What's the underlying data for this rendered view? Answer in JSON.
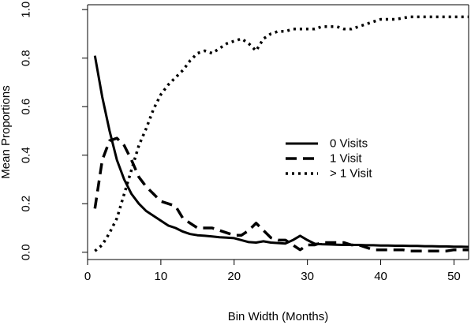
{
  "chart_data": {
    "type": "line",
    "title": "",
    "xlabel": "Bin Width (Months)",
    "ylabel": "Mean Proportions",
    "xlim": [
      0,
      52
    ],
    "ylim": [
      -0.03,
      1.02
    ],
    "x_ticks": [
      0,
      10,
      20,
      30,
      40,
      50
    ],
    "x_tick_labels": [
      "0",
      "10",
      "20",
      "30",
      "40",
      "50"
    ],
    "y_ticks": [
      0.0,
      0.2,
      0.4,
      0.6,
      0.8,
      1.0
    ],
    "y_tick_labels": [
      "0.0",
      "0.2",
      "0.4",
      "0.6",
      "0.8",
      "1.0"
    ],
    "grid": false,
    "legend_position": "center-right",
    "series": [
      {
        "name": "0 Visits",
        "line_style": "solid",
        "color": "#000000",
        "x": [
          1,
          2,
          3,
          4,
          5,
          6,
          7,
          8,
          9,
          10,
          11,
          12,
          13,
          14,
          15,
          16,
          17,
          18,
          19,
          20,
          21,
          22,
          23,
          24,
          25,
          26,
          27,
          28,
          29,
          30,
          31,
          32,
          33,
          34,
          35,
          36,
          37,
          38,
          39,
          40,
          41,
          42,
          43,
          44,
          45,
          46,
          47,
          48,
          49,
          50,
          51,
          52
        ],
        "y": [
          0.81,
          0.64,
          0.5,
          0.38,
          0.3,
          0.24,
          0.2,
          0.17,
          0.15,
          0.13,
          0.11,
          0.1,
          0.085,
          0.075,
          0.07,
          0.068,
          0.065,
          0.062,
          0.06,
          0.058,
          0.05,
          0.042,
          0.04,
          0.045,
          0.04,
          0.038,
          0.036,
          0.05,
          0.068,
          0.05,
          0.035,
          0.033,
          0.032,
          0.031,
          0.03,
          0.03,
          0.03,
          0.029,
          0.029,
          0.028,
          0.028,
          0.027,
          0.027,
          0.026,
          0.026,
          0.025,
          0.025,
          0.024,
          0.024,
          0.023,
          0.023,
          0.022
        ]
      },
      {
        "name": "1 Visit",
        "line_style": "dashed",
        "color": "#000000",
        "x": [
          1,
          2,
          3,
          4,
          5,
          6,
          7,
          8,
          9,
          10,
          11,
          12,
          13,
          14,
          15,
          16,
          17,
          18,
          19,
          20,
          21,
          22,
          23,
          24,
          25,
          26,
          27,
          28,
          29,
          30,
          31,
          32,
          33,
          34,
          35,
          36,
          37,
          38,
          39,
          40,
          41,
          42,
          43,
          44,
          45,
          46,
          47,
          48,
          49,
          50,
          51,
          52
        ],
        "y": [
          0.18,
          0.38,
          0.46,
          0.47,
          0.44,
          0.38,
          0.31,
          0.27,
          0.24,
          0.21,
          0.2,
          0.19,
          0.14,
          0.12,
          0.1,
          0.1,
          0.1,
          0.09,
          0.08,
          0.07,
          0.07,
          0.09,
          0.12,
          0.09,
          0.06,
          0.05,
          0.05,
          0.03,
          0.01,
          0.03,
          0.03,
          0.04,
          0.04,
          0.04,
          0.04,
          0.03,
          0.03,
          0.02,
          0.01,
          0.01,
          0.01,
          0.01,
          0.01,
          0.005,
          0.005,
          0.005,
          0.005,
          0.005,
          0.005,
          0.01,
          0.01,
          0.01
        ]
      },
      {
        "name": "> 1 Visit",
        "line_style": "dotted",
        "color": "#000000",
        "x": [
          1,
          2,
          3,
          4,
          5,
          6,
          7,
          8,
          9,
          10,
          11,
          12,
          13,
          14,
          15,
          16,
          17,
          18,
          19,
          20,
          21,
          22,
          23,
          24,
          25,
          26,
          27,
          28,
          29,
          30,
          31,
          32,
          33,
          34,
          35,
          36,
          37,
          38,
          39,
          40,
          41,
          42,
          43,
          44,
          45,
          46,
          47,
          48,
          49,
          50,
          51,
          52
        ],
        "y": [
          0.005,
          0.03,
          0.08,
          0.14,
          0.24,
          0.34,
          0.44,
          0.51,
          0.59,
          0.65,
          0.69,
          0.72,
          0.75,
          0.79,
          0.82,
          0.83,
          0.82,
          0.84,
          0.86,
          0.87,
          0.88,
          0.86,
          0.83,
          0.88,
          0.9,
          0.91,
          0.91,
          0.92,
          0.92,
          0.92,
          0.92,
          0.93,
          0.93,
          0.93,
          0.92,
          0.92,
          0.93,
          0.94,
          0.95,
          0.96,
          0.96,
          0.96,
          0.965,
          0.97,
          0.97,
          0.97,
          0.97,
          0.97,
          0.97,
          0.97,
          0.97,
          0.97
        ]
      }
    ]
  }
}
